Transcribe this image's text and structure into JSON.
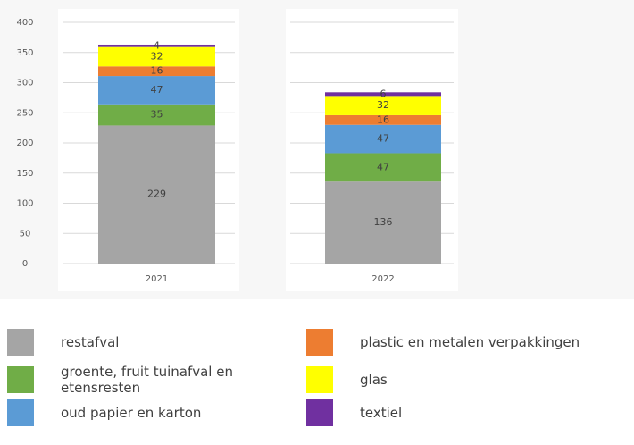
{
  "chart_data": {
    "type": "stacked_bar",
    "categories": [
      "2021",
      "2022"
    ],
    "series": [
      {
        "name": "restafval",
        "color": "#a5a5a5",
        "values": [
          229,
          136
        ]
      },
      {
        "name": "groente, fruit tuinafval en etensresten",
        "color": "#70ad47",
        "values": [
          35,
          47
        ]
      },
      {
        "name": "oud papier en karton",
        "color": "#5b9bd5",
        "values": [
          47,
          47
        ]
      },
      {
        "name": "plastic en metalen verpakkingen",
        "color": "#ed7d31",
        "values": [
          16,
          16
        ]
      },
      {
        "name": "glas",
        "color": "#ffff00",
        "values": [
          32,
          32
        ]
      },
      {
        "name": "textiel",
        "color": "#7030a0",
        "values": [
          4,
          6
        ]
      }
    ],
    "ylim": [
      0,
      400
    ],
    "yticks": [
      0,
      50,
      100,
      150,
      200,
      250,
      300,
      350,
      400
    ],
    "grid": true
  }
}
